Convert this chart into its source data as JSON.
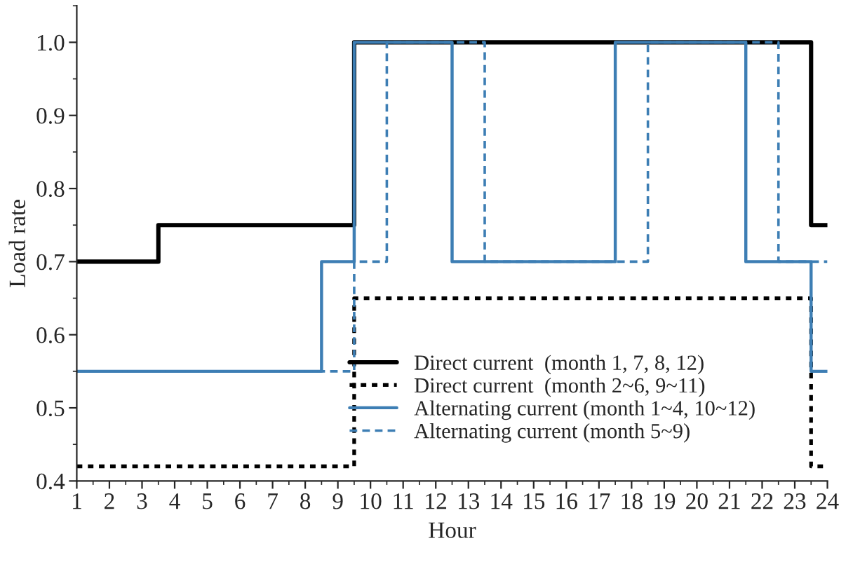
{
  "chart_data": {
    "type": "step",
    "xlabel": "Hour",
    "ylabel": "Load rate",
    "xlim": [
      1,
      24
    ],
    "xticks": [
      1,
      2,
      3,
      4,
      5,
      6,
      7,
      8,
      9,
      10,
      11,
      12,
      13,
      14,
      15,
      16,
      17,
      18,
      19,
      20,
      21,
      22,
      23,
      24
    ],
    "ylim": [
      0.4,
      1.05
    ],
    "yticks": [
      0.4,
      0.5,
      0.6,
      0.7,
      0.8,
      0.9,
      {
        "value": 1.0,
        "label": "1.0"
      }
    ],
    "grid": false,
    "legend": "bottom right",
    "series": [
      {
        "name": "Direct current  (month 1, 7, 8, 12)",
        "color": "#000000",
        "line_style": "solid",
        "x": [
          1,
          3.5,
          9.5,
          23.5,
          24
        ],
        "values": [
          0.7,
          0.75,
          1.0,
          0.75,
          0.75
        ]
      },
      {
        "name": "Direct current  (month 2~6, 9~11)",
        "color": "#000000",
        "line_style": "dotted",
        "x": [
          1,
          9.5,
          23.5,
          24
        ],
        "values": [
          0.42,
          0.65,
          0.42,
          0.42
        ]
      },
      {
        "name": "Alternating current (month 1~4, 10~12)",
        "color": "#3d7eb4",
        "line_style": "solid",
        "x": [
          1,
          8.5,
          9.5,
          12.5,
          17.5,
          21.5,
          23.5,
          24
        ],
        "values": [
          0.55,
          0.7,
          1.0,
          0.7,
          1.0,
          0.7,
          0.55,
          0.55
        ]
      },
      {
        "name": "Alternating current (month 5~9)",
        "color": "#3d7eb4",
        "line_style": "dashed",
        "x": [
          1,
          9.5,
          10.5,
          13.5,
          18.5,
          22.5,
          24
        ],
        "values": [
          0.55,
          0.7,
          1.0,
          0.7,
          1.0,
          0.7,
          0.7
        ]
      }
    ]
  }
}
